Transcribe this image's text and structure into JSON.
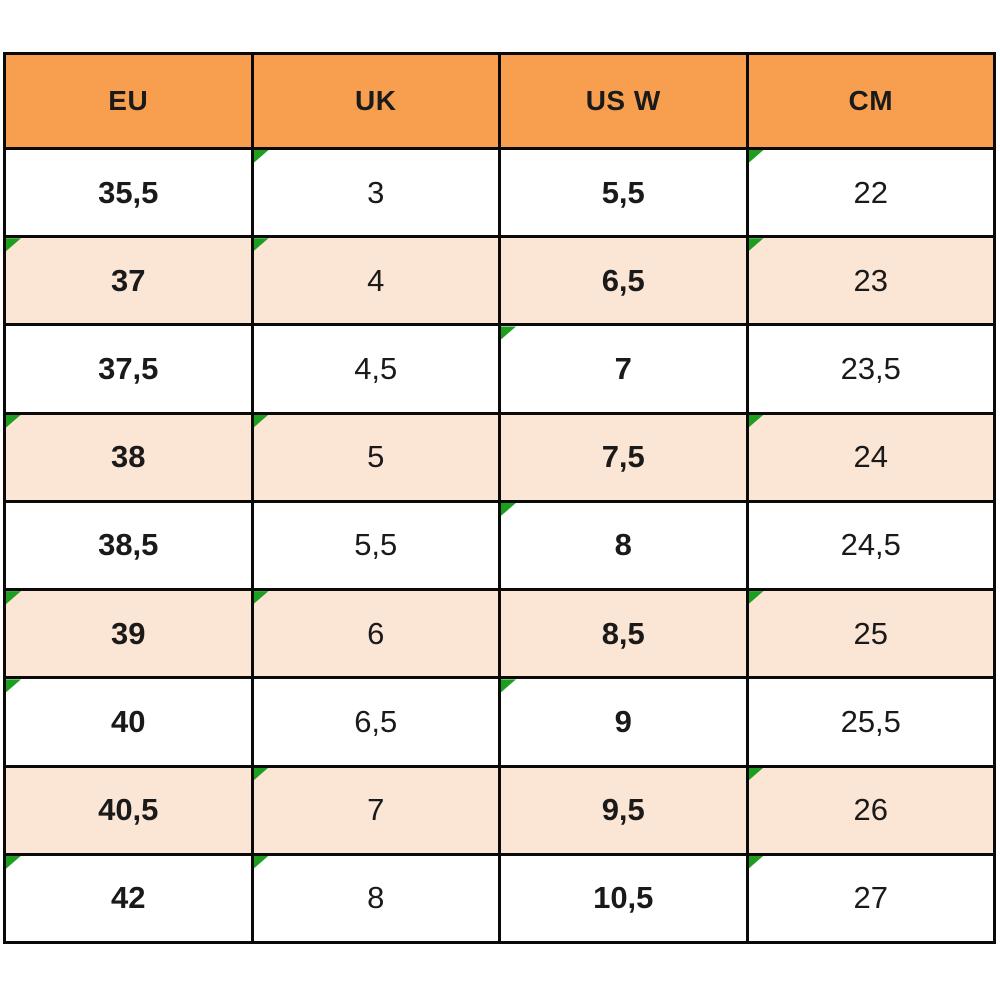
{
  "chart_data": {
    "type": "table",
    "title": "",
    "columns": [
      "EU",
      "UK",
      "US W",
      "CM"
    ],
    "rows": [
      [
        "35,5",
        "3",
        "5,5",
        "22"
      ],
      [
        "37",
        "4",
        "6,5",
        "23"
      ],
      [
        "37,5",
        "4,5",
        "7",
        "23,5"
      ],
      [
        "38",
        "5",
        "7,5",
        "24"
      ],
      [
        "38,5",
        "5,5",
        "8",
        "24,5"
      ],
      [
        "39",
        "6",
        "8,5",
        "25"
      ],
      [
        "40",
        "6,5",
        "9",
        "25,5"
      ],
      [
        "40,5",
        "7",
        "9,5",
        "26"
      ],
      [
        "42",
        "8",
        "10,5",
        "27"
      ]
    ]
  },
  "table": {
    "headers": [
      "EU",
      "UK",
      "US W",
      "CM"
    ],
    "rows": [
      {
        "cells": [
          {
            "value": "35,5",
            "flag": false
          },
          {
            "value": "3",
            "flag": true
          },
          {
            "value": "5,5",
            "flag": false
          },
          {
            "value": "22",
            "flag": true
          }
        ]
      },
      {
        "cells": [
          {
            "value": "37",
            "flag": true
          },
          {
            "value": "4",
            "flag": true
          },
          {
            "value": "6,5",
            "flag": false
          },
          {
            "value": "23",
            "flag": true
          }
        ]
      },
      {
        "cells": [
          {
            "value": "37,5",
            "flag": false
          },
          {
            "value": "4,5",
            "flag": false
          },
          {
            "value": "7",
            "flag": true
          },
          {
            "value": "23,5",
            "flag": false
          }
        ]
      },
      {
        "cells": [
          {
            "value": "38",
            "flag": true
          },
          {
            "value": "5",
            "flag": true
          },
          {
            "value": "7,5",
            "flag": false
          },
          {
            "value": "24",
            "flag": true
          }
        ]
      },
      {
        "cells": [
          {
            "value": "38,5",
            "flag": false
          },
          {
            "value": "5,5",
            "flag": false
          },
          {
            "value": "8",
            "flag": true
          },
          {
            "value": "24,5",
            "flag": false
          }
        ]
      },
      {
        "cells": [
          {
            "value": "39",
            "flag": true
          },
          {
            "value": "6",
            "flag": true
          },
          {
            "value": "8,5",
            "flag": false
          },
          {
            "value": "25",
            "flag": true
          }
        ]
      },
      {
        "cells": [
          {
            "value": "40",
            "flag": true
          },
          {
            "value": "6,5",
            "flag": false
          },
          {
            "value": "9",
            "flag": true
          },
          {
            "value": "25,5",
            "flag": false
          }
        ]
      },
      {
        "cells": [
          {
            "value": "40,5",
            "flag": false
          },
          {
            "value": "7",
            "flag": true
          },
          {
            "value": "9,5",
            "flag": false
          },
          {
            "value": "26",
            "flag": true
          }
        ]
      },
      {
        "cells": [
          {
            "value": "42",
            "flag": true
          },
          {
            "value": "8",
            "flag": true
          },
          {
            "value": "10,5",
            "flag": false
          },
          {
            "value": "27",
            "flag": true
          }
        ]
      }
    ]
  },
  "colors": {
    "header_bg": "#F79F4E",
    "row_bg": "#FFFFFF",
    "row_alt_bg": "#FBE5D5",
    "flag_green": "#1E9E20",
    "border": "#0A0A0A",
    "text": "#1A1A1A"
  }
}
